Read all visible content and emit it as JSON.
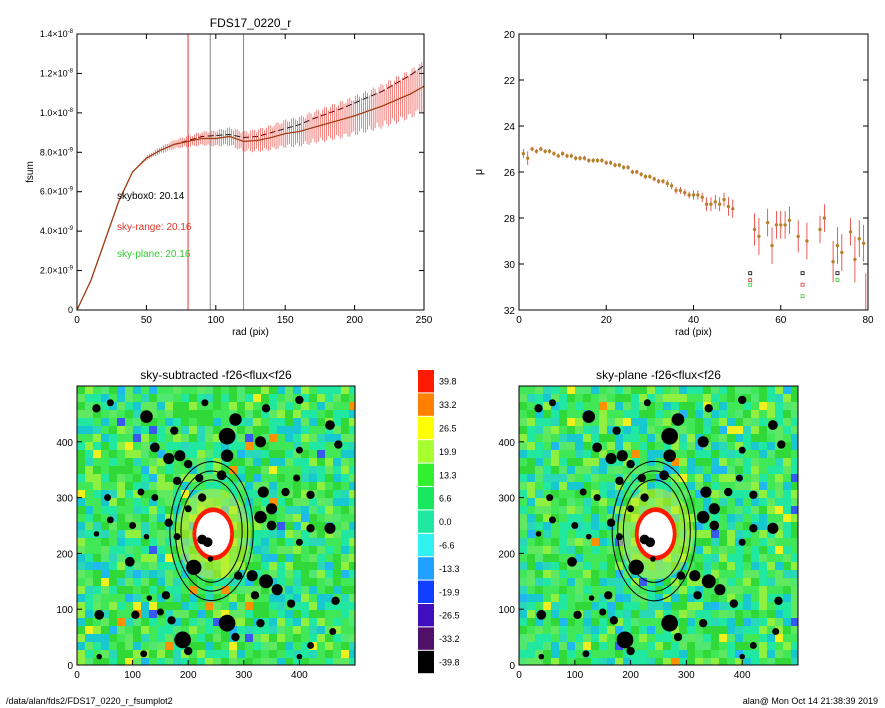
{
  "footer": {
    "left": "/data/alan/fds2/FDS17_0220_r_fsumplot2",
    "right": "alan@  Mon Oct 14 21:38:39 2019"
  },
  "colors": {
    "black": "#000000",
    "red": "#e8322a",
    "green": "#33cc33",
    "gray": "#888888",
    "points": "#b5812c"
  },
  "chart_data": [
    {
      "type": "line",
      "title": "FDS17_0220_r",
      "xlabel": "rad (pix)",
      "ylabel": "fsum",
      "xlim": [
        0,
        250
      ],
      "ylim": [
        0,
        1.4e-08
      ],
      "xticks": [
        "0",
        "50",
        "100",
        "150",
        "200",
        "250"
      ],
      "yticks": [
        {
          "base": "0",
          "exp": ""
        },
        {
          "base": "2.0×10",
          "exp": "-9"
        },
        {
          "base": "4.0×10",
          "exp": "-9"
        },
        {
          "base": "6.0×10",
          "exp": "-9"
        },
        {
          "base": "8.0×10",
          "exp": "-9"
        },
        {
          "base": "1.0×10",
          "exp": "-8"
        },
        {
          "base": "1.2×10",
          "exp": "-8"
        },
        {
          "base": "1.4×10",
          "exp": "-8"
        }
      ],
      "vlines": [
        {
          "x": 80,
          "color": "red"
        },
        {
          "x": 96,
          "color": "gray"
        },
        {
          "x": 120,
          "color": "gray"
        }
      ],
      "annotations": [
        {
          "text": "skybox0: 20.14",
          "color": "black"
        },
        {
          "text": "sky-range: 20.16",
          "color": "red"
        },
        {
          "text": "sky-plane: 20.16",
          "color": "green"
        }
      ],
      "series": [
        {
          "style": "dashed-black",
          "x": [
            0,
            10,
            20,
            30,
            40,
            50,
            60,
            70,
            80,
            90,
            100,
            110,
            120,
            130,
            140,
            150,
            160,
            170,
            180,
            190,
            200,
            210,
            220,
            230,
            240,
            250
          ],
          "y": [
            0,
            1.5e-09,
            3.5e-09,
            5.5e-09,
            7e-09,
            7.7e-09,
            8.1e-09,
            8.4e-09,
            8.6e-09,
            8.8e-09,
            8.85e-09,
            8.9e-09,
            8.75e-09,
            8.8e-09,
            9e-09,
            9.2e-09,
            9.4e-09,
            9.7e-09,
            9.95e-09,
            1.02e-08,
            1.05e-08,
            1.08e-08,
            1.11e-08,
            1.15e-08,
            1.19e-08,
            1.24e-08
          ]
        },
        {
          "style": "red-errorbars",
          "x": [
            0,
            10,
            20,
            30,
            40,
            50,
            60,
            70,
            80,
            90,
            100,
            110,
            120,
            130,
            140,
            150,
            160,
            170,
            180,
            190,
            200,
            210,
            220,
            230,
            240,
            250
          ],
          "y": [
            0,
            1.5e-09,
            3.5e-09,
            5.5e-09,
            7e-09,
            7.7e-09,
            8.1e-09,
            8.4e-09,
            8.55e-09,
            8.7e-09,
            8.7e-09,
            8.8e-09,
            8.55e-09,
            8.6e-09,
            8.75e-09,
            8.95e-09,
            9.05e-09,
            9.25e-09,
            9.45e-09,
            9.65e-09,
            9.85e-09,
            1.01e-08,
            1.035e-08,
            1.065e-08,
            1.095e-08,
            1.135e-08
          ],
          "err": [
            0,
            0,
            0,
            0,
            0,
            1e-10,
            1.5e-10,
            2e-10,
            2.5e-10,
            3e-10,
            3.5e-10,
            4e-10,
            4.5e-10,
            5e-10,
            5.5e-10,
            6e-10,
            6.5e-10,
            7e-10,
            7.5e-10,
            8e-10,
            8.5e-10,
            9e-10,
            9.5e-10,
            1e-09,
            1.05e-09,
            1.1e-09
          ]
        }
      ]
    },
    {
      "type": "scatter",
      "title": "",
      "xlabel": "rad (pix)",
      "ylabel": "μ",
      "xlim": [
        0,
        80
      ],
      "ylim": [
        32,
        20
      ],
      "xticks": [
        "0",
        "20",
        "40",
        "60",
        "80"
      ],
      "yticks": [
        "20",
        "22",
        "24",
        "26",
        "28",
        "30",
        "32"
      ],
      "x": [
        1,
        2,
        3,
        4,
        5,
        6,
        7,
        8,
        9,
        10,
        11,
        12,
        13,
        14,
        15,
        16,
        17,
        18,
        19,
        20,
        21,
        22,
        23,
        24,
        25,
        26,
        27,
        28,
        29,
        30,
        31,
        32,
        33,
        34,
        35,
        36,
        37,
        38,
        39,
        40,
        41,
        42,
        43,
        44,
        45,
        46,
        47,
        48,
        49,
        54,
        55,
        57,
        58,
        59,
        60,
        61,
        62,
        64,
        66,
        69,
        70,
        72,
        73,
        74,
        76,
        77,
        78,
        79
      ],
      "y": [
        25.2,
        25.4,
        25.0,
        25.1,
        25.0,
        25.1,
        25.1,
        25.2,
        25.3,
        25.2,
        25.3,
        25.3,
        25.4,
        25.4,
        25.4,
        25.5,
        25.5,
        25.5,
        25.5,
        25.6,
        25.6,
        25.7,
        25.7,
        25.8,
        25.8,
        26.0,
        26.0,
        26.1,
        26.2,
        26.2,
        26.3,
        26.4,
        26.4,
        26.5,
        26.6,
        26.8,
        26.8,
        26.9,
        27.0,
        27.0,
        27.0,
        27.1,
        27.4,
        27.4,
        27.3,
        27.4,
        27.2,
        27.5,
        27.6,
        28.5,
        28.8,
        28.2,
        29.2,
        28.3,
        28.3,
        28.3,
        28.1,
        28.8,
        29.0,
        28.5,
        28.0,
        29.9,
        29.2,
        29.5,
        28.6,
        29.8,
        28.9,
        29.1
      ],
      "err": [
        0.2,
        0.3,
        0.1,
        0.1,
        0.1,
        0.1,
        0.1,
        0.1,
        0.1,
        0.1,
        0.1,
        0.1,
        0.1,
        0.1,
        0.1,
        0.1,
        0.1,
        0.1,
        0.1,
        0.1,
        0.1,
        0.1,
        0.1,
        0.1,
        0.1,
        0.1,
        0.1,
        0.1,
        0.1,
        0.1,
        0.1,
        0.1,
        0.1,
        0.15,
        0.15,
        0.15,
        0.15,
        0.15,
        0.15,
        0.2,
        0.2,
        0.2,
        0.3,
        0.3,
        0.3,
        0.3,
        0.3,
        0.4,
        0.4,
        0.7,
        0.8,
        0.6,
        0.8,
        0.6,
        0.6,
        0.6,
        0.6,
        0.7,
        0.8,
        0.6,
        0.6,
        0.9,
        0.8,
        0.8,
        0.6,
        1.0,
        0.8,
        0.8
      ],
      "extra_points": [
        {
          "x": 53,
          "y": 30.4,
          "color": "black"
        },
        {
          "x": 53,
          "y": 30.7,
          "color": "red"
        },
        {
          "x": 53,
          "y": 30.9,
          "color": "green"
        },
        {
          "x": 65,
          "y": 30.4,
          "color": "black"
        },
        {
          "x": 65,
          "y": 30.9,
          "color": "red"
        },
        {
          "x": 65,
          "y": 31.4,
          "color": "green"
        },
        {
          "x": 73,
          "y": 30.4,
          "color": "black"
        },
        {
          "x": 73,
          "y": 30.7,
          "color": "green"
        }
      ]
    },
    {
      "type": "heatmap",
      "title": "sky-subtracted -f26<flux<f26",
      "xlim": [
        0,
        500
      ],
      "ylim": [
        0,
        500
      ],
      "xticks": [
        "0",
        "100",
        "200",
        "300",
        "400"
      ],
      "yticks": [
        "0",
        "100",
        "200",
        "300",
        "400"
      ]
    },
    {
      "type": "heatmap",
      "title": "sky-plane -f26<flux<f26",
      "xlim": [
        0,
        500
      ],
      "ylim": [
        0,
        500
      ],
      "xticks": [
        "0",
        "100",
        "200",
        "300",
        "400"
      ],
      "yticks": [
        "0",
        "100",
        "200",
        "300",
        "400"
      ]
    },
    {
      "type": "colorbar",
      "levels": [
        "39.8",
        "33.2",
        "26.5",
        "19.9",
        "13.3",
        "6.6",
        "0.0",
        "-6.6",
        "-13.3",
        "-19.9",
        "-26.5",
        "-33.2",
        "-39.8"
      ],
      "colors": [
        "#ff1a00",
        "#ff8000",
        "#ffff00",
        "#a8ff30",
        "#30f030",
        "#18e860",
        "#20e8a0",
        "#30f0f0",
        "#20a0ff",
        "#1040ff",
        "#4010c0",
        "#50106a",
        "#000000"
      ]
    }
  ]
}
